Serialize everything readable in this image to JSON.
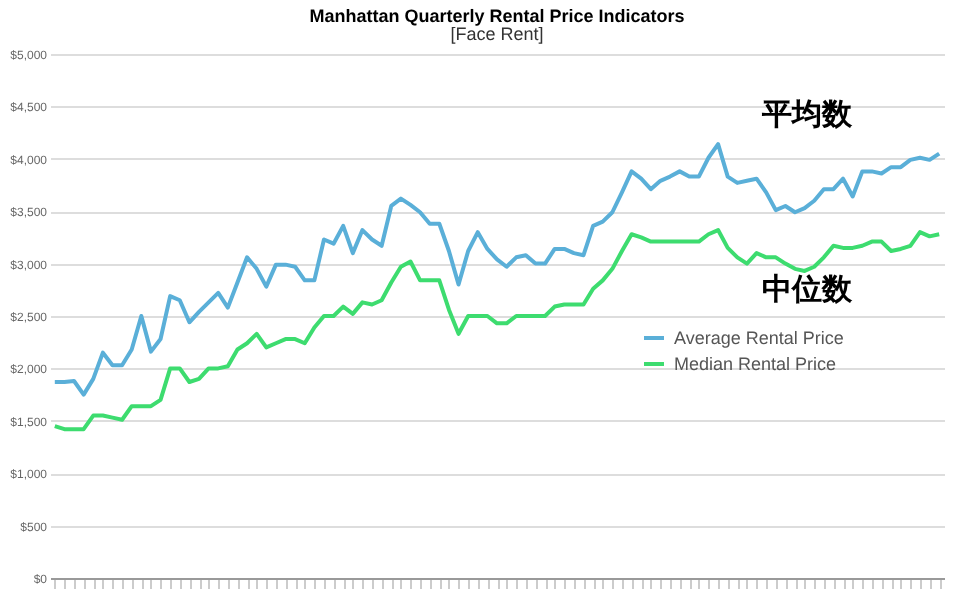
{
  "chart_data": {
    "type": "line",
    "title": "Manhattan Quarterly Rental Price Indicators",
    "subtitle": "[Face Rent]",
    "categories": [
      null,
      null,
      null,
      null,
      null,
      null,
      null,
      null,
      null,
      null,
      null,
      null,
      null,
      null,
      null,
      null,
      null,
      null,
      null,
      null,
      null,
      null,
      null,
      null,
      null,
      null,
      null,
      null,
      null,
      null,
      null,
      null,
      null,
      null,
      null,
      null,
      null,
      null,
      null,
      null,
      null,
      null,
      null,
      null,
      null,
      null,
      null,
      null,
      null,
      null,
      null,
      null,
      null,
      null,
      null,
      null,
      null,
      null,
      null,
      null,
      null,
      null,
      null,
      null,
      null,
      null,
      null,
      null,
      null,
      null,
      null,
      null,
      null,
      null,
      null,
      null,
      null,
      null,
      null,
      null,
      null,
      null,
      null,
      null,
      null,
      null,
      null,
      null,
      null,
      null,
      null,
      null,
      null
    ],
    "series": [
      {
        "name": "Average Rental Price",
        "color": "#5aafd8",
        "values": [
          1870,
          1870,
          1880,
          1750,
          1900,
          2150,
          2030,
          2030,
          2180,
          2500,
          2160,
          2280,
          2690,
          2650,
          2440,
          2540,
          2630,
          2720,
          2580,
          2820,
          3060,
          2950,
          2780,
          2990,
          2990,
          2970,
          2840,
          2840,
          3230,
          3190,
          3360,
          3100,
          3320,
          3230,
          3170,
          3550,
          3620,
          3560,
          3490,
          3380,
          3380,
          3120,
          2800,
          3120,
          3300,
          3140,
          3040,
          2970,
          3060,
          3080,
          3000,
          3000,
          3140,
          3140,
          3100,
          3080,
          3360,
          3400,
          3490,
          3680,
          3880,
          3810,
          3710,
          3790,
          3830,
          3880,
          3830,
          3830,
          4010,
          4140,
          3830,
          3770,
          3790,
          3810,
          3680,
          3510,
          3550,
          3490,
          3530,
          3600,
          3710,
          3710,
          3810,
          3640,
          3880,
          3880,
          3860,
          3920,
          3920,
          3990,
          4010,
          3990,
          4050
        ]
      },
      {
        "name": "Median Rental Price",
        "color": "#3ddc6f",
        "values": [
          1450,
          1420,
          1420,
          1420,
          1550,
          1550,
          1530,
          1510,
          1640,
          1640,
          1640,
          1700,
          2000,
          2000,
          1870,
          1900,
          2000,
          2000,
          2020,
          2180,
          2240,
          2330,
          2200,
          2240,
          2280,
          2280,
          2240,
          2390,
          2500,
          2500,
          2590,
          2520,
          2630,
          2610,
          2650,
          2820,
          2970,
          3020,
          2840,
          2840,
          2840,
          2560,
          2330,
          2500,
          2500,
          2500,
          2430,
          2430,
          2500,
          2500,
          2500,
          2500,
          2590,
          2610,
          2610,
          2610,
          2760,
          2840,
          2950,
          3120,
          3280,
          3250,
          3210,
          3210,
          3210,
          3210,
          3210,
          3210,
          3280,
          3320,
          3150,
          3060,
          3000,
          3100,
          3060,
          3060,
          3000,
          2950,
          2930,
          2970,
          3060,
          3170,
          3150,
          3150,
          3170,
          3210,
          3210,
          3120,
          3140,
          3170,
          3300,
          3260,
          3280
        ]
      }
    ],
    "ylim": [
      0,
      5000
    ],
    "yticks": [
      {
        "value": 0,
        "label": "$0"
      },
      {
        "value": 500,
        "label": "$500"
      },
      {
        "value": 1000,
        "label": "$1,000"
      },
      {
        "value": 1500,
        "label": "$1,500"
      },
      {
        "value": 2000,
        "label": "$2,000"
      },
      {
        "value": 2500,
        "label": "$2,500"
      },
      {
        "value": 3000,
        "label": "$3,000"
      },
      {
        "value": 3500,
        "label": "$3,500"
      },
      {
        "value": 4000,
        "label": "$4,000"
      },
      {
        "value": 4500,
        "label": "$4,500"
      },
      {
        "value": 5000,
        "label": "$5,000"
      }
    ],
    "grid": "y",
    "legend": "right",
    "tick_labels": "y",
    "marker": "none",
    "line_style": "solid",
    "annotations": [
      "平均数",
      "中位数"
    ]
  }
}
